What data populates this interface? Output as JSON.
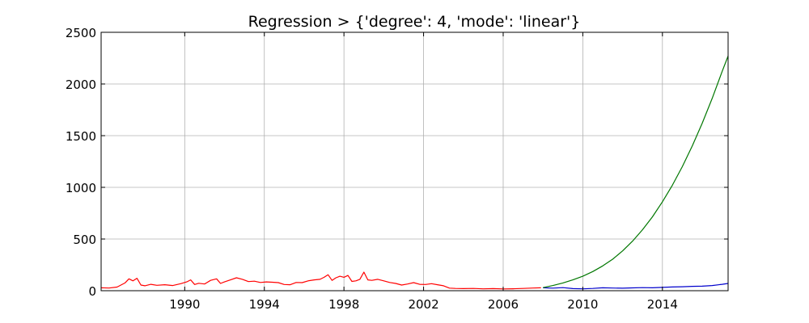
{
  "chart_data": {
    "type": "line",
    "title": "Regression > {'degree': 4, 'mode': 'linear'}",
    "xlabel": "",
    "ylabel": "",
    "xlim": [
      1985.8,
      2017.3
    ],
    "ylim": [
      0,
      2500
    ],
    "grid": true,
    "x_ticks": [
      1990,
      1994,
      1998,
      2002,
      2006,
      2010,
      2014
    ],
    "x_tick_labels": [
      "1990",
      "1994",
      "1998",
      "2002",
      "2006",
      "2010",
      "2014"
    ],
    "y_ticks": [
      0,
      500,
      1000,
      1500,
      2000,
      2500
    ],
    "y_tick_labels": [
      "0",
      "500",
      "1000",
      "1500",
      "2000",
      "2500"
    ],
    "series": [
      {
        "color": "#ff0000",
        "x": [
          1985.8,
          1986.2,
          1986.6,
          1987.0,
          1987.2,
          1987.4,
          1987.6,
          1987.8,
          1988.0,
          1988.3,
          1988.6,
          1989.0,
          1989.4,
          1989.8,
          1990.1,
          1990.3,
          1990.5,
          1990.7,
          1991.0,
          1991.3,
          1991.6,
          1991.8,
          1992.0,
          1992.3,
          1992.6,
          1992.9,
          1993.2,
          1993.5,
          1993.8,
          1994.1,
          1994.4,
          1994.7,
          1995.0,
          1995.3,
          1995.6,
          1995.9,
          1996.2,
          1996.5,
          1996.8,
          1997.0,
          1997.2,
          1997.4,
          1997.6,
          1997.8,
          1998.0,
          1998.2,
          1998.4,
          1998.6,
          1998.8,
          1999.0,
          1999.2,
          1999.4,
          1999.7,
          2000.0,
          2000.3,
          2000.6,
          2000.9,
          2001.2,
          2001.5,
          2001.8,
          2002.1,
          2002.4,
          2002.7,
          2003.0,
          2003.3,
          2003.6,
          2004.0,
          2004.5,
          2005.0,
          2005.5,
          2006.0,
          2006.5,
          2007.0,
          2007.5,
          2007.9
        ],
        "y": [
          28,
          26,
          35,
          75,
          115,
          95,
          120,
          55,
          48,
          62,
          52,
          58,
          50,
          68,
          85,
          105,
          60,
          72,
          65,
          100,
          115,
          70,
          85,
          105,
          125,
          110,
          88,
          92,
          80,
          85,
          82,
          78,
          60,
          58,
          80,
          78,
          95,
          105,
          110,
          130,
          155,
          100,
          125,
          140,
          130,
          148,
          90,
          95,
          110,
          180,
          105,
          100,
          110,
          95,
          80,
          70,
          55,
          65,
          78,
          62,
          60,
          68,
          58,
          48,
          25,
          22,
          20,
          22,
          18,
          20,
          17,
          19,
          22,
          26,
          28
        ]
      },
      {
        "color": "#0000cc",
        "x": [
          2008.0,
          2008.5,
          2009.0,
          2009.5,
          2010.0,
          2010.5,
          2011.0,
          2011.5,
          2012.0,
          2012.5,
          2013.0,
          2013.5,
          2014.0,
          2014.5,
          2015.0,
          2015.5,
          2016.0,
          2016.5,
          2017.0,
          2017.3
        ],
        "y": [
          28,
          25,
          30,
          20,
          18,
          22,
          28,
          26,
          24,
          27,
          30,
          28,
          32,
          36,
          38,
          42,
          44,
          50,
          62,
          70
        ]
      },
      {
        "color": "#007700",
        "x": [
          2008.0,
          2008.5,
          2009.0,
          2009.5,
          2010.0,
          2010.5,
          2011.0,
          2011.5,
          2012.0,
          2012.5,
          2013.0,
          2013.5,
          2014.0,
          2014.5,
          2015.0,
          2015.5,
          2016.0,
          2016.5,
          2017.0,
          2017.3
        ],
        "y": [
          30,
          50,
          75,
          105,
          140,
          185,
          240,
          305,
          385,
          480,
          590,
          715,
          860,
          1020,
          1200,
          1400,
          1620,
          1860,
          2120,
          2270
        ]
      }
    ]
  }
}
